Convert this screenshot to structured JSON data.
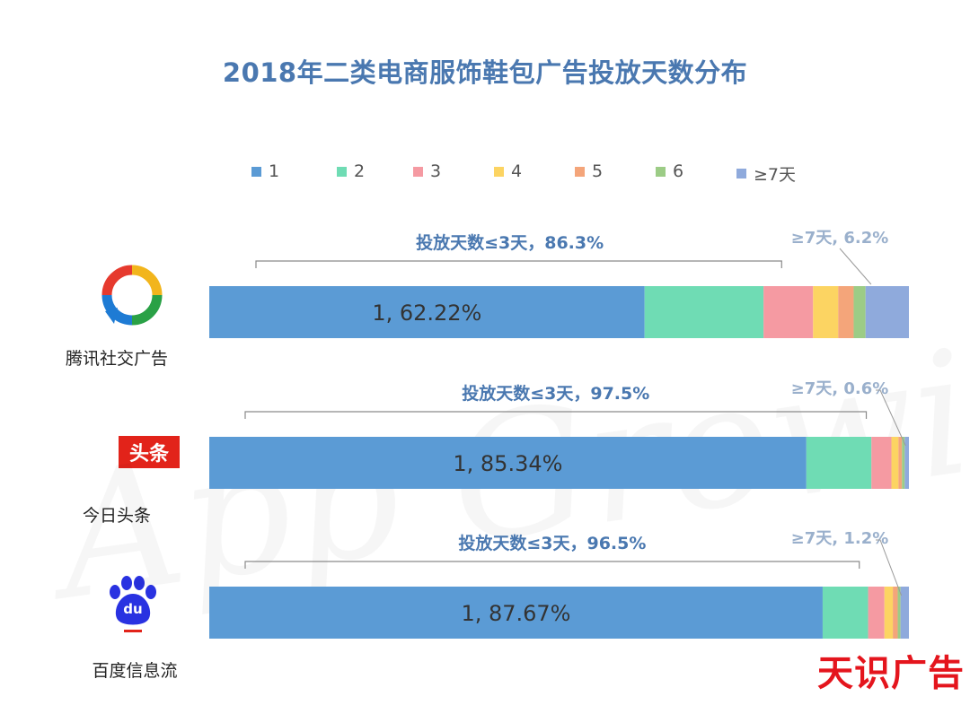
{
  "chart_data": {
    "type": "bar",
    "orientation": "horizontal",
    "stacked": true,
    "title": "2018年二类电商服饰鞋包广告投放天数分布",
    "legend_position": "top",
    "series": [
      {
        "name": "1",
        "color": "#5b9bd5",
        "values": [
          62.22,
          85.34,
          87.67
        ]
      },
      {
        "name": "2",
        "color": "#6fdcb4",
        "values": [
          17.0,
          9.3,
          6.5
        ]
      },
      {
        "name": "3",
        "color": "#f59aa2",
        "values": [
          7.08,
          2.86,
          2.33
        ]
      },
      {
        "name": "4",
        "color": "#fcd462",
        "values": [
          3.6,
          1.0,
          1.2
        ]
      },
      {
        "name": "5",
        "color": "#f4a57a",
        "values": [
          2.2,
          0.5,
          0.7
        ]
      },
      {
        "name": "6",
        "color": "#9ccc86",
        "values": [
          1.7,
          0.4,
          0.4
        ]
      },
      {
        "name": "≥7天",
        "color": "#8faadc",
        "values": [
          6.2,
          0.6,
          1.2
        ]
      }
    ],
    "categories": [
      "腾讯社交广告",
      "今日头条",
      "百度信息流"
    ],
    "rows": [
      {
        "name": "腾讯社交广告",
        "inner_label": "1, 62.22%",
        "bracket_label": "投放天数≤3天，86.3%",
        "ge7_label": "≥7天, 6.2%"
      },
      {
        "name": "今日头条",
        "inner_label": "1, 85.34%",
        "bracket_label": "投放天数≤3天，97.5%",
        "ge7_label": "≥7天, 0.6%"
      },
      {
        "name": "百度信息流",
        "inner_label": "1, 87.67%",
        "bracket_label": "投放天数≤3天，96.5%",
        "ge7_label": "≥7天, 1.2%"
      }
    ]
  },
  "logos": {
    "toutiao_text": "头条",
    "baidu_text": "du"
  },
  "watermark_text": "App Growing",
  "brand": "天识广告"
}
